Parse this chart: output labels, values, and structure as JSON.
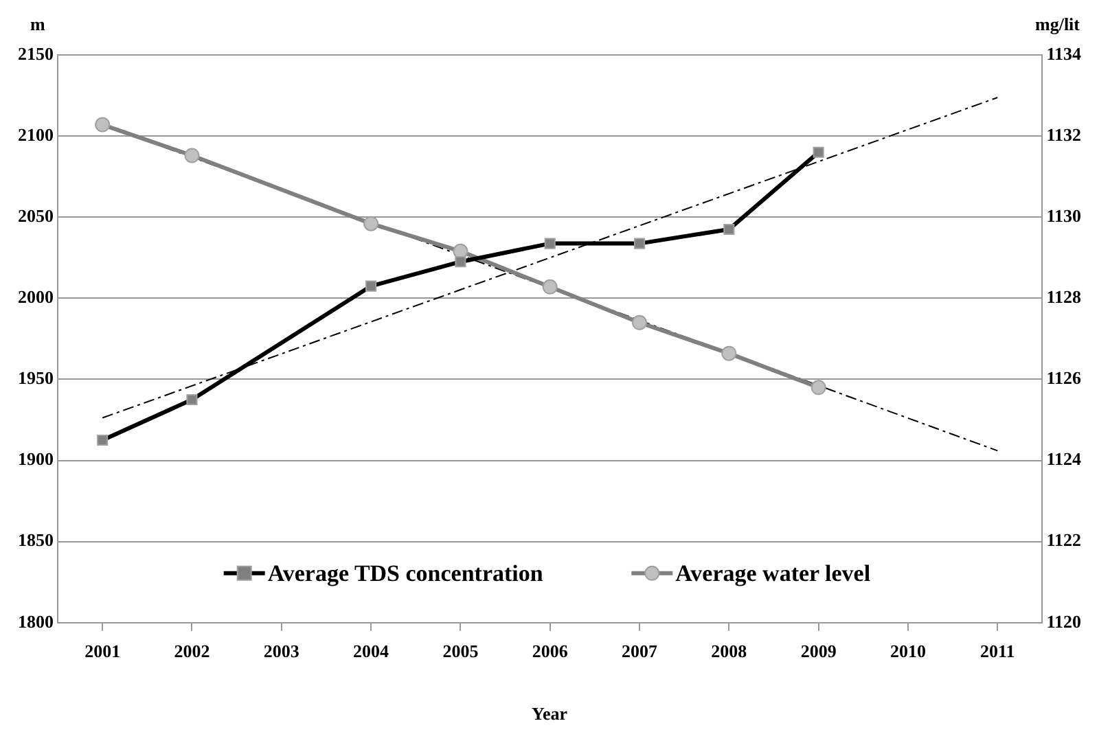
{
  "chart_data": {
    "type": "line",
    "xlabel": "Year",
    "ylabel": "m",
    "y2label": "mg/lit",
    "xlim": [
      2000.5,
      2011.5
    ],
    "xticks": [
      2001,
      2002,
      2003,
      2004,
      2005,
      2006,
      2007,
      2008,
      2009,
      2010,
      2011
    ],
    "ylim": [
      1800,
      2150
    ],
    "yticks": [
      1800,
      1850,
      1900,
      1950,
      2000,
      2050,
      2100,
      2150
    ],
    "y2lim": [
      1120,
      1134
    ],
    "y2ticks": [
      1120,
      1122,
      1124,
      1126,
      1128,
      1130,
      1132,
      1134
    ],
    "grid": "y",
    "legend": "bottom",
    "series": [
      {
        "name": "Average TDS concentration",
        "color": "#000000",
        "axis": "y2",
        "marker": "square",
        "x": [
          2001,
          2002,
          2004,
          2005,
          2006,
          2007,
          2008,
          2009
        ],
        "values": [
          1124.5,
          1125.5,
          1128.3,
          1128.9,
          1129.35,
          1129.35,
          1129.7,
          1131.6
        ]
      },
      {
        "name": "Average water level",
        "color": "#808080",
        "axis": "y",
        "marker": "circle",
        "x": [
          2001,
          2002,
          2004,
          2005,
          2006,
          2007,
          2008,
          2009
        ],
        "values": [
          2107,
          2088,
          2046,
          2029,
          2007,
          1985,
          1966,
          1945
        ]
      },
      {
        "type": "line",
        "color": "#000000",
        "axis": "y2",
        "marker": "none",
        "line_style": "dashed",
        "x": [
          2001,
          2011
        ],
        "values": [
          1125.05,
          1132.95
        ]
      },
      {
        "type": "line",
        "color": "#000000",
        "axis": "y",
        "marker": "none",
        "line_style": "dashed",
        "x": [
          2001,
          2011
        ],
        "values": [
          2107,
          1906
        ]
      }
    ]
  }
}
